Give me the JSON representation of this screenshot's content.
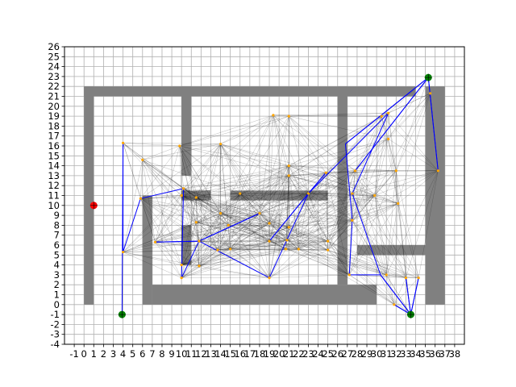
{
  "chart_data": {
    "type": "scatter",
    "title": "",
    "xlabel": "",
    "ylabel": "",
    "xlim": [
      -2,
      39
    ],
    "ylim": [
      -4,
      26
    ],
    "grid": true,
    "x_ticks": [
      "-1",
      "0",
      "1",
      "2",
      "3",
      "4",
      "5",
      "6",
      "7",
      "8",
      "9",
      "10",
      "11",
      "12",
      "13",
      "14",
      "15",
      "16",
      "17",
      "18",
      "19",
      "20",
      "21",
      "22",
      "23",
      "24",
      "25",
      "26",
      "27",
      "28",
      "29",
      "30",
      "31",
      "32",
      "33",
      "34",
      "35",
      "36",
      "37",
      "38"
    ],
    "y_ticks": [
      "-4",
      "-3",
      "-2",
      "-1",
      "0",
      "1",
      "2",
      "3",
      "4",
      "5",
      "6",
      "7",
      "8",
      "9",
      "10",
      "11",
      "12",
      "13",
      "14",
      "15",
      "16",
      "17",
      "18",
      "19",
      "20",
      "21",
      "22",
      "23",
      "24",
      "25",
      "26"
    ],
    "colors": {
      "obstacle": "#808080",
      "graph_edge": "#000000",
      "path": "#0000ff",
      "node": "#ffa500",
      "start": "#ff0000",
      "goal": "#008000"
    },
    "obstacles": [
      {
        "x": 0,
        "y": 0,
        "w": 1,
        "h": 22
      },
      {
        "x": 0,
        "y": 21,
        "w": 34,
        "h": 1
      },
      {
        "x": 10,
        "y": 13,
        "w": 1,
        "h": 9
      },
      {
        "x": 26,
        "y": 2,
        "w": 1,
        "h": 20
      },
      {
        "x": 35,
        "y": 0,
        "w": 2,
        "h": 22
      },
      {
        "x": 6,
        "y": 0,
        "w": 1,
        "h": 11
      },
      {
        "x": 7,
        "y": 0,
        "w": 23,
        "h": 2
      },
      {
        "x": 10,
        "y": 10.5,
        "w": 3,
        "h": 1
      },
      {
        "x": 15,
        "y": 10.5,
        "w": 10,
        "h": 1
      },
      {
        "x": 28,
        "y": 5,
        "w": 8,
        "h": 1
      },
      {
        "x": 10,
        "y": 4,
        "w": 1,
        "h": 4
      }
    ],
    "nodes": [
      [
        4,
        16.3
      ],
      [
        6,
        14.6
      ],
      [
        9.8,
        16
      ],
      [
        4,
        5.3
      ],
      [
        5.8,
        10.7
      ],
      [
        10.2,
        11.7
      ],
      [
        10,
        11
      ],
      [
        11.5,
        10.8
      ],
      [
        7.3,
        6.3
      ],
      [
        10,
        2.7
      ],
      [
        10,
        4
      ],
      [
        11.8,
        6.4
      ],
      [
        11.8,
        3.9
      ],
      [
        11.5,
        8.3
      ],
      [
        14,
        16.2
      ],
      [
        14,
        9.2
      ],
      [
        14.8,
        8
      ],
      [
        13.7,
        5.5
      ],
      [
        15,
        5.6
      ],
      [
        16,
        11.2
      ],
      [
        18,
        9.2
      ],
      [
        19,
        8.2
      ],
      [
        19,
        6.4
      ],
      [
        19,
        2.7
      ],
      [
        20.7,
        5.6
      ],
      [
        20.8,
        6.5
      ],
      [
        22,
        5.6
      ],
      [
        21,
        7.8
      ],
      [
        21,
        13
      ],
      [
        21,
        14
      ],
      [
        21,
        19
      ],
      [
        23,
        11.2
      ],
      [
        24.8,
        13.3
      ],
      [
        25,
        6.4
      ],
      [
        25,
        5.5
      ],
      [
        27.8,
        13.5
      ],
      [
        27.5,
        11.2
      ],
      [
        27.5,
        8.5
      ],
      [
        27.2,
        3
      ],
      [
        29.8,
        11
      ],
      [
        30.5,
        19
      ],
      [
        31.2,
        19.3
      ],
      [
        31.2,
        16.7
      ],
      [
        32,
        13.5
      ],
      [
        32.2,
        10.2
      ],
      [
        31,
        3
      ],
      [
        31.8,
        0
      ],
      [
        33,
        2.7
      ],
      [
        34.3,
        2.7
      ],
      [
        35.5,
        21.3
      ],
      [
        36.3,
        13.5
      ],
      [
        33.5,
        -1
      ],
      [
        35.3,
        22.9
      ],
      [
        19.4,
        19.1
      ]
    ],
    "path": [
      [
        3.9,
        -1
      ],
      [
        4,
        16.3
      ],
      [
        4,
        5.3
      ],
      [
        5.8,
        10.7
      ],
      [
        10.2,
        11.7
      ],
      [
        10,
        2.7
      ],
      [
        11.8,
        6.4
      ],
      [
        7.3,
        6.3
      ],
      [
        11.8,
        6.4
      ],
      [
        18,
        9.2
      ],
      [
        11.8,
        6.4
      ],
      [
        19,
        2.7
      ],
      [
        23,
        11.2
      ],
      [
        19,
        6.4
      ],
      [
        23,
        11.2
      ],
      [
        24.8,
        13.3
      ],
      [
        23,
        11.2
      ],
      [
        31.2,
        19.3
      ],
      [
        27.5,
        11.2
      ],
      [
        30.4,
        3
      ],
      [
        33.5,
        -1
      ],
      [
        33,
        2.7
      ],
      [
        33.5,
        -1
      ],
      [
        34.3,
        2.7
      ],
      [
        33.5,
        -1
      ],
      [
        31.8,
        0
      ],
      [
        33.5,
        -1
      ],
      [
        30.4,
        3
      ],
      [
        27.2,
        3
      ],
      [
        27.5,
        8.5
      ],
      [
        26.8,
        16.2
      ],
      [
        35.3,
        22.9
      ],
      [
        27.8,
        13.5
      ],
      [
        35.3,
        22.9
      ],
      [
        36.3,
        13.5
      ],
      [
        35.3,
        22.9
      ],
      [
        26.8,
        16.2
      ]
    ],
    "start": [
      1,
      10
    ],
    "goals": [
      [
        3.9,
        -1
      ],
      [
        33.5,
        -1
      ],
      [
        35.3,
        22.9
      ]
    ]
  }
}
